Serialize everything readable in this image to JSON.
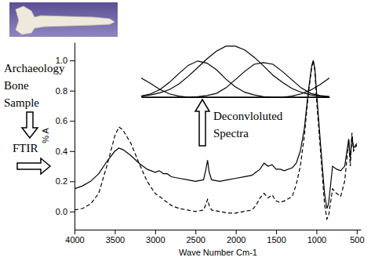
{
  "chart_data": [
    {
      "type": "line",
      "annotations": [
        "Archaeology Bone Sample",
        "FTIR"
      ],
      "x_label": "Wave Number Cm-1",
      "y_label": "% A",
      "x": [
        4000,
        3900,
        3800,
        3700,
        3600,
        3500,
        3450,
        3400,
        3300,
        3200,
        3100,
        3000,
        2950,
        2920,
        2900,
        2850,
        2800,
        2700,
        2600,
        2500,
        2400,
        2370,
        2350,
        2330,
        2300,
        2200,
        2100,
        2000,
        1900,
        1800,
        1750,
        1700,
        1650,
        1600,
        1550,
        1500,
        1450,
        1400,
        1300,
        1250,
        1200,
        1150,
        1100,
        1060,
        1040,
        1020,
        1000,
        950,
        900,
        870,
        850,
        800,
        750,
        700,
        650,
        600,
        580,
        560,
        540,
        500
      ],
      "series": [
        {
          "color": "#000000",
          "line_style": "solid",
          "values": [
            0.15,
            0.17,
            0.2,
            0.25,
            0.33,
            0.4,
            0.42,
            0.41,
            0.37,
            0.32,
            0.28,
            0.26,
            0.27,
            0.26,
            0.25,
            0.25,
            0.23,
            0.22,
            0.21,
            0.2,
            0.21,
            0.28,
            0.34,
            0.26,
            0.21,
            0.2,
            0.21,
            0.22,
            0.23,
            0.24,
            0.26,
            0.28,
            0.32,
            0.3,
            0.31,
            0.28,
            0.28,
            0.27,
            0.29,
            0.32,
            0.4,
            0.55,
            0.8,
            0.96,
            1.0,
            0.95,
            0.8,
            0.45,
            0.12,
            0.02,
            0.05,
            0.3,
            0.28,
            0.27,
            0.3,
            0.48,
            0.35,
            0.5,
            0.42,
            0.45
          ]
        },
        {
          "color": "#000000",
          "line_style": "dashed",
          "values": [
            0.01,
            0.02,
            0.05,
            0.12,
            0.3,
            0.5,
            0.56,
            0.54,
            0.45,
            0.32,
            0.2,
            0.12,
            0.1,
            0.09,
            0.08,
            0.06,
            0.04,
            0.02,
            0.01,
            0.0,
            0.01,
            0.05,
            0.08,
            0.04,
            0.01,
            0.0,
            -0.01,
            -0.01,
            0.0,
            0.01,
            0.04,
            0.09,
            0.12,
            0.09,
            0.11,
            0.07,
            0.06,
            0.07,
            0.1,
            0.18,
            0.3,
            0.5,
            0.78,
            0.95,
            1.0,
            0.93,
            0.75,
            0.4,
            0.05,
            -0.05,
            -0.03,
            0.15,
            0.12,
            0.1,
            0.2,
            0.47,
            0.3,
            0.52,
            0.4,
            0.44
          ]
        }
      ],
      "xlim": [
        4000,
        450
      ],
      "xticks": [
        4000,
        3500,
        3000,
        2500,
        2000,
        1500,
        1000,
        500
      ],
      "ylim": [
        -0.12,
        1.12
      ],
      "yticks": [
        {
          "value": 0,
          "label": "0.0"
        },
        0.2,
        0.4,
        0.6,
        0.8,
        {
          "value": 1,
          "label": "1.0"
        }
      ],
      "grid": false
    },
    {
      "type": "line",
      "title": "Deconvloluted Spectra",
      "tick_labels": false,
      "x": [
        0,
        5,
        10,
        15,
        20,
        25,
        30,
        35,
        40,
        45,
        50,
        55,
        60,
        65,
        70,
        75,
        80,
        85,
        90,
        95,
        100
      ],
      "series": [
        {
          "color": "#000000",
          "values": [
            0.02,
            0.04,
            0.08,
            0.14,
            0.24,
            0.38,
            0.54,
            0.7,
            0.84,
            0.93,
            0.93,
            0.86,
            0.73,
            0.57,
            0.4,
            0.27,
            0.16,
            0.09,
            0.04,
            0.02,
            0.01
          ]
        },
        {
          "color": "#000000",
          "values": [
            0.02,
            0.06,
            0.14,
            0.27,
            0.43,
            0.58,
            0.66,
            0.62,
            0.5,
            0.33,
            0.19,
            0.09,
            0.04,
            0.01,
            0.0,
            0.0,
            0.0,
            0.0,
            0.0,
            0.0,
            0.0
          ]
        },
        {
          "color": "#000000",
          "values": [
            0.0,
            0.0,
            0.0,
            0.0,
            0.0,
            0.0,
            0.01,
            0.03,
            0.07,
            0.17,
            0.32,
            0.47,
            0.6,
            0.63,
            0.6,
            0.47,
            0.32,
            0.17,
            0.07,
            0.03,
            0.01
          ]
        },
        {
          "color": "#000000",
          "values": [
            0.35,
            0.25,
            0.14,
            0.06,
            0.02,
            0.0,
            0.0,
            0.0,
            0.0,
            0.0,
            0.0,
            0.0,
            0.0,
            0.0,
            0.0,
            0.0,
            0.0,
            0.0,
            0.0,
            0.0,
            0.0
          ]
        },
        {
          "color": "#000000",
          "values": [
            0.0,
            0.0,
            0.0,
            0.0,
            0.0,
            0.0,
            0.0,
            0.0,
            0.0,
            0.0,
            0.0,
            0.0,
            0.0,
            0.0,
            0.0,
            0.0,
            0.02,
            0.06,
            0.13,
            0.23,
            0.35
          ]
        }
      ],
      "xlim": [
        0,
        100
      ],
      "ylim": [
        0,
        1
      ]
    }
  ]
}
